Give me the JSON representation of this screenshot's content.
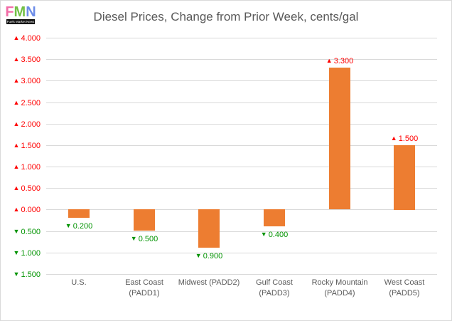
{
  "logo": {
    "letters": [
      {
        "char": "F",
        "color": "#F26CA7"
      },
      {
        "char": "M",
        "color": "#72BF44"
      },
      {
        "char": "N",
        "color": "#6C8CE8"
      }
    ],
    "tagline": "Fuels Market News"
  },
  "chart_data": {
    "type": "bar",
    "title": "Diesel Prices, Change from Prior Week, cents/gal",
    "xlabel": "",
    "ylabel": "",
    "unit": "cents/gal",
    "legend": "none",
    "grid": true,
    "categories": [
      "U.S.",
      "East Coast (PADD1)",
      "Midwest (PADD2)",
      "Gulf Coast (PADD3)",
      "Rocky Mountain (PADD4)",
      "West Coast (PADD5)"
    ],
    "category_lines": [
      [
        "U.S."
      ],
      [
        "East Coast",
        "(PADD1)"
      ],
      [
        "Midwest (PADD2)"
      ],
      [
        "Gulf Coast",
        "(PADD3)"
      ],
      [
        "Rocky Mountain",
        "(PADD4)"
      ],
      [
        "West Coast",
        "(PADD5)"
      ]
    ],
    "values": [
      -0.2,
      -0.5,
      -0.9,
      -0.4,
      3.3,
      1.5
    ],
    "value_labels": [
      {
        "text": "0.200",
        "dir": "down"
      },
      {
        "text": "0.500",
        "dir": "down"
      },
      {
        "text": "0.900",
        "dir": "down"
      },
      {
        "text": "0.400",
        "dir": "down"
      },
      {
        "text": "3.300",
        "dir": "up"
      },
      {
        "text": "1.500",
        "dir": "up"
      }
    ],
    "y_axis": {
      "min": -1.5,
      "max": 4.0,
      "step": 0.5,
      "ticks": [
        {
          "text": "4.000",
          "dir": "up"
        },
        {
          "text": "3.500",
          "dir": "up"
        },
        {
          "text": "3.000",
          "dir": "up"
        },
        {
          "text": "2.500",
          "dir": "up"
        },
        {
          "text": "2.000",
          "dir": "up"
        },
        {
          "text": "1.500",
          "dir": "up"
        },
        {
          "text": "1.000",
          "dir": "up"
        },
        {
          "text": "0.500",
          "dir": "up"
        },
        {
          "text": "0.000",
          "dir": "up"
        },
        {
          "text": "0.500",
          "dir": "down"
        },
        {
          "text": "1.000",
          "dir": "down"
        },
        {
          "text": "1.500",
          "dir": "down"
        }
      ]
    },
    "icons": {
      "up": "▲",
      "down": "▼"
    },
    "colors": {
      "bar": "#ED7D31",
      "up": "#FF0000",
      "down": "#009300",
      "text": "#595959",
      "grid": "#D9D9D9",
      "background": "#FFFFFF"
    }
  }
}
